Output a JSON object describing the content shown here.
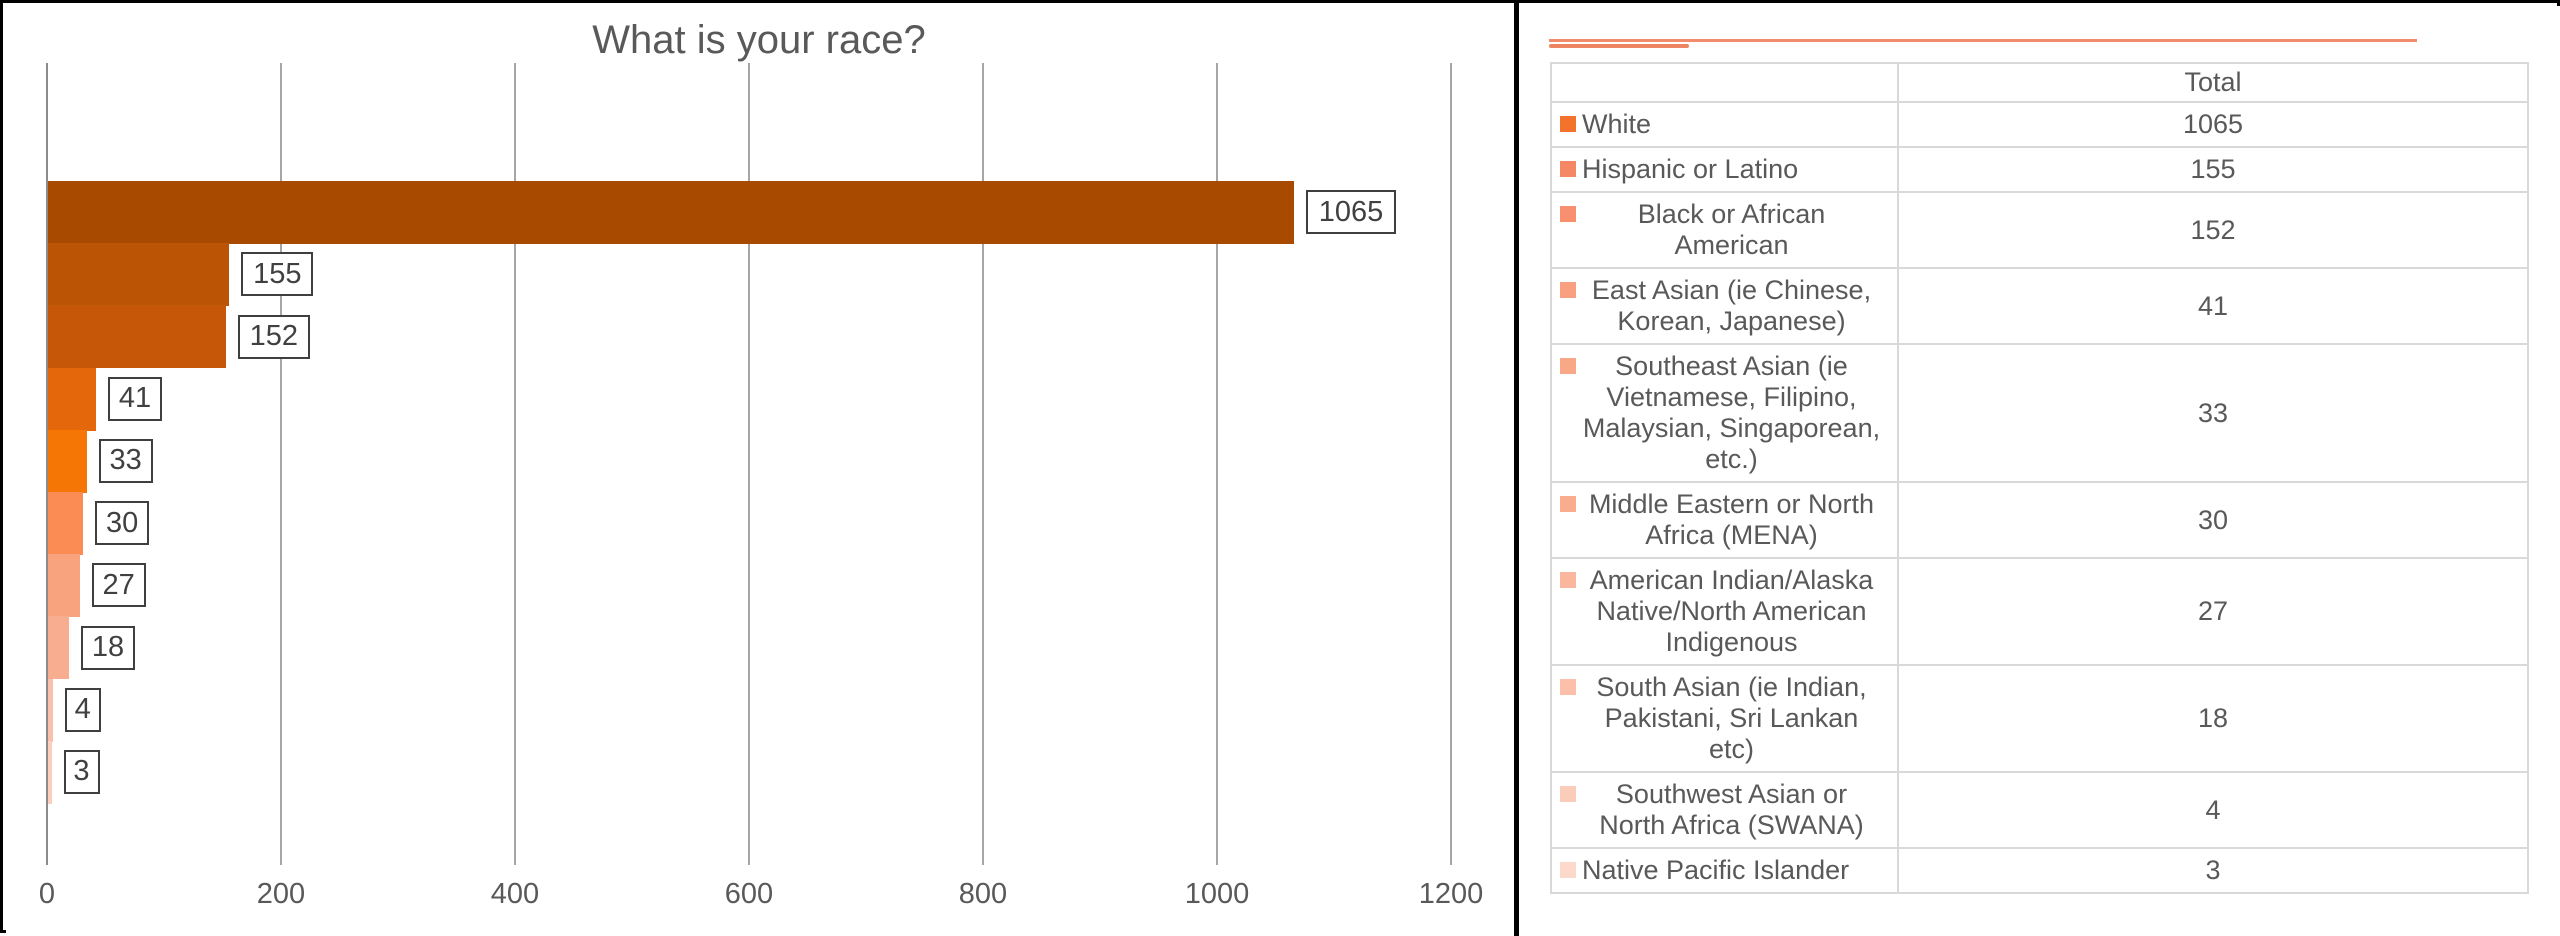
{
  "chart_data": {
    "type": "bar",
    "orientation": "horizontal",
    "title": "What is your race?",
    "categories": [
      "White",
      "Hispanic or Latino",
      "Black or African American",
      "East Asian (ie Chinese, Korean, Japanese)",
      "Southeast Asian (ie Vietnamese, Filipino, Malaysian, Singaporean, etc.)",
      "Middle Eastern or North Africa (MENA)",
      "American Indian/Alaska Native/North American Indigenous",
      "South Asian (ie Indian, Pakistani, Sri Lankan etc)",
      "Southwest Asian or North Africa (SWANA)",
      "Native Pacific Islander"
    ],
    "values": [
      1065,
      155,
      152,
      41,
      33,
      30,
      27,
      18,
      4,
      3
    ],
    "bar_colors": [
      "#a84b01",
      "#bc5406",
      "#c65708",
      "#e5670c",
      "#f57605",
      "#fb8c53",
      "#f9a27e",
      "#f9ad90",
      "#fbc0ab",
      "#fccebe"
    ],
    "x_ticks": [
      0,
      200,
      400,
      600,
      800,
      1000,
      1200
    ],
    "xlim": [
      0,
      1255
    ],
    "grid": true,
    "value_labels_shown": true,
    "legend_position": "table-right"
  },
  "table": {
    "header_total": "Total",
    "rows": [
      {
        "label": "White",
        "value": 1065,
        "swatch": "#f4732c"
      },
      {
        "label": "Hispanic or Latino",
        "value": 155,
        "swatch": "#f58765"
      },
      {
        "label": "Black or African American",
        "value": 152,
        "swatch": "#f8906f"
      },
      {
        "label": "East Asian (ie Chinese, Korean, Japanese)",
        "value": 41,
        "swatch": "#f9a080"
      },
      {
        "label": "Southeast Asian (ie Vietnamese, Filipino, Malaysian, Singaporean, etc.)",
        "value": 33,
        "swatch": "#f9a887"
      },
      {
        "label": "Middle Eastern or North Africa (MENA)",
        "value": 30,
        "swatch": "#faac8f"
      },
      {
        "label": "American Indian/Alaska Native/North American Indigenous",
        "value": 27,
        "swatch": "#fbb69e"
      },
      {
        "label": "South Asian (ie Indian, Pakistani, Sri Lankan etc)",
        "value": 18,
        "swatch": "#fbbfaa"
      },
      {
        "label": "Southwest Asian or North Africa (SWANA)",
        "value": 4,
        "swatch": "#fcccba"
      },
      {
        "label": "Native Pacific Islander",
        "value": 3,
        "swatch": "#fdd9cc"
      }
    ]
  },
  "colors": {
    "title_text": "#595959",
    "axis_text": "#595959",
    "gridline": "#a6a6a6",
    "table_border": "#d9d9d9",
    "label_box_border": "#3f3f3f",
    "divider_accent": "#f28b6b",
    "panel_border": "#000000"
  }
}
